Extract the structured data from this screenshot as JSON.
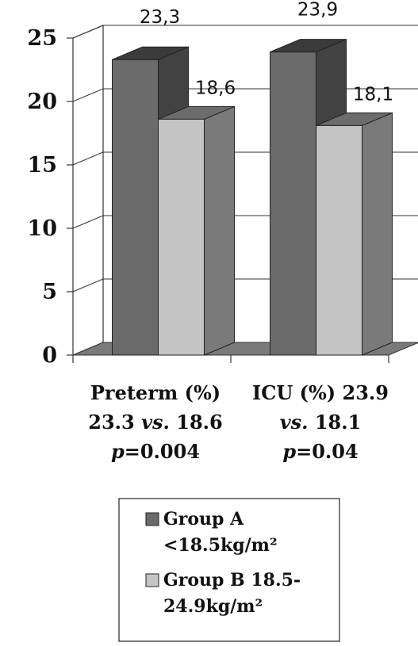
{
  "chart_data": {
    "type": "bar",
    "categories": [
      "Preterm (%) 23.3 vs. 18.6 p=0.004",
      "ICU (%) 23.9 vs. 18.1 p=0.04"
    ],
    "category_labels": [
      [
        [
          {
            "t": "Preterm (%)",
            "i": false
          }
        ],
        [
          {
            "t": "23.3 ",
            "i": false
          },
          {
            "t": "vs.",
            "i": true
          },
          {
            "t": " 18.6",
            "i": false
          }
        ],
        [
          {
            "t": "p",
            "i": true
          },
          {
            "t": "=0.004",
            "i": false
          }
        ]
      ],
      [
        [
          {
            "t": "ICU (%) 23.9",
            "i": false
          }
        ],
        [
          {
            "t": "vs.",
            "i": true
          },
          {
            "t": " 18.1",
            "i": false
          }
        ],
        [
          {
            "t": "p",
            "i": true
          },
          {
            "t": "=0.04",
            "i": false
          }
        ]
      ]
    ],
    "series": [
      {
        "name": "Group A <18.5kg/m²",
        "values": [
          23.3,
          23.9
        ],
        "data_labels": [
          "23,3",
          "23,9"
        ],
        "color": "#6b6b6b",
        "legend_lines": [
          "Group A",
          "<18.5kg/m²"
        ]
      },
      {
        "name": "Group B 18.5-24.9kg/m²",
        "values": [
          18.6,
          18.1
        ],
        "data_labels": [
          "18,6",
          "18,1"
        ],
        "color": "#c4c4c4",
        "legend_lines": [
          "Group B 18.5-",
          "24.9kg/m²"
        ]
      }
    ],
    "ylim": [
      0,
      25
    ],
    "yticks": [
      0,
      5,
      10,
      15,
      20,
      25
    ],
    "grid": true,
    "three_d": true,
    "legend_position": "bottom"
  }
}
